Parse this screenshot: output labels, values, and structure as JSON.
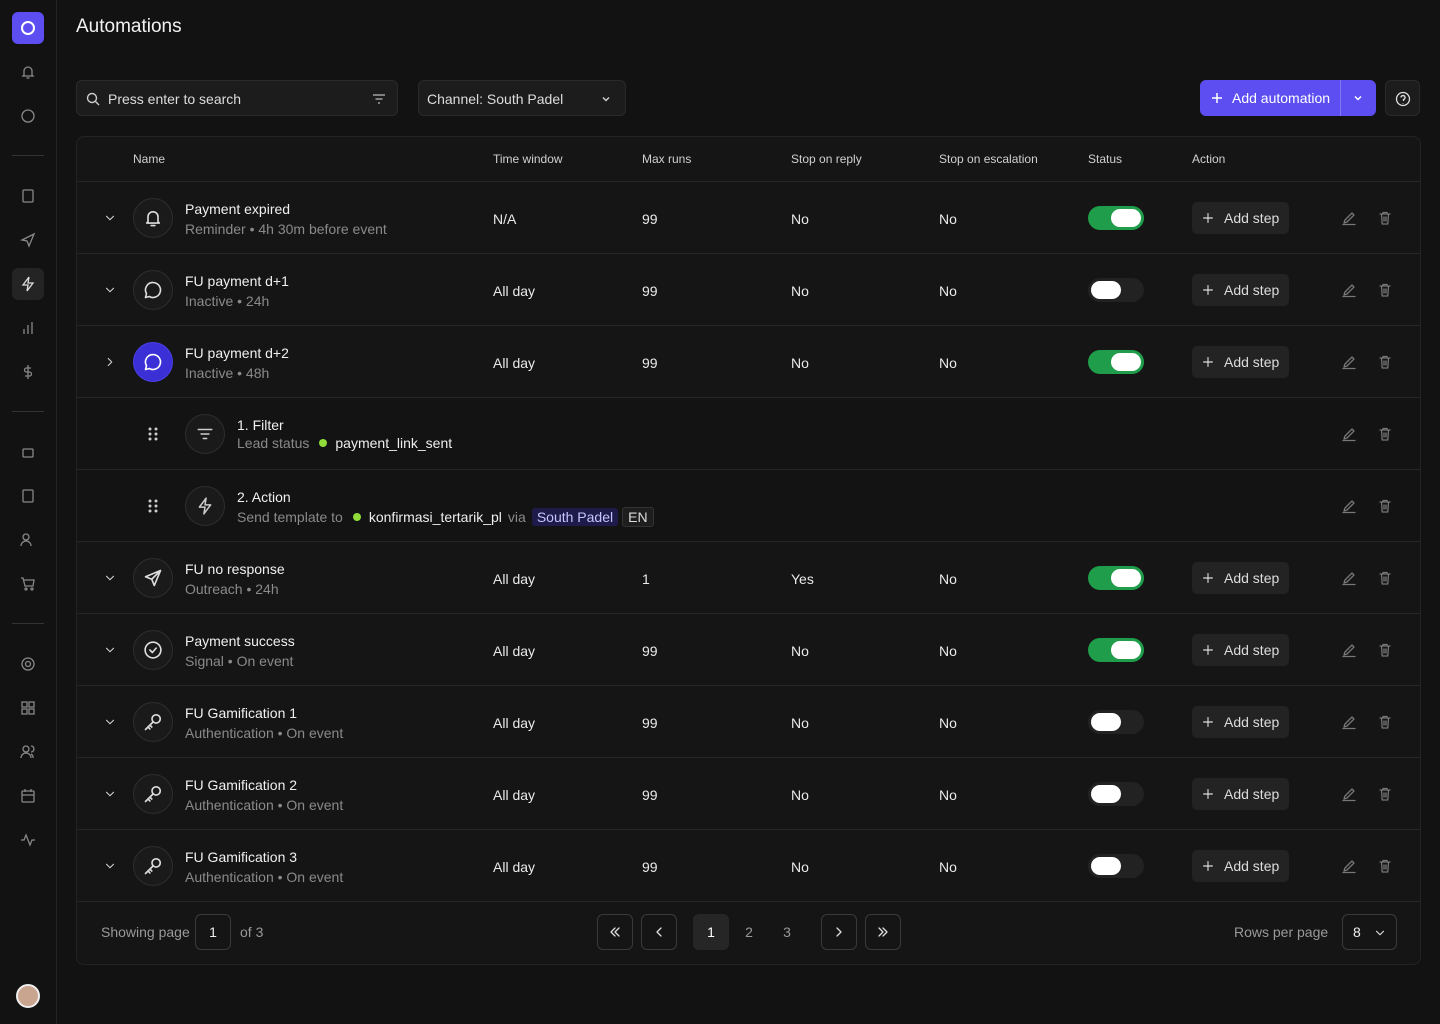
{
  "page": {
    "title": "Automations"
  },
  "toolbar": {
    "search_placeholder": "Press enter to search",
    "channel": "Channel: South Padel",
    "add_button": "Add automation"
  },
  "table": {
    "columns": [
      "Name",
      "Time window",
      "Max runs",
      "Stop on reply",
      "Stop on escalation",
      "Status",
      "Action"
    ],
    "add_step_label": "Add step",
    "rows": [
      {
        "name": "Payment expired",
        "subtitle": "Reminder • 4h 30m before event",
        "icon": "bell",
        "time_window": "N/A",
        "max_runs": 99,
        "stop_on_reply": "No",
        "stop_on_escalation": "No",
        "active": true,
        "expanded": false
      },
      {
        "name": "FU payment d+1",
        "subtitle": "Inactive • 24h",
        "icon": "chat",
        "time_window": "All day",
        "max_runs": 99,
        "stop_on_reply": "No",
        "stop_on_escalation": "No",
        "active": false,
        "expanded": false
      },
      {
        "name": "FU payment d+2",
        "subtitle": "Inactive • 48h",
        "icon": "chat",
        "time_window": "All day",
        "max_runs": 99,
        "stop_on_reply": "No",
        "stop_on_escalation": "No",
        "active": true,
        "expanded": true,
        "steps": [
          {
            "title": "1. Filter",
            "icon": "filter",
            "label": "Lead status",
            "value": "payment_link_sent"
          },
          {
            "title": "2. Action",
            "icon": "bolt",
            "label": "Send template to",
            "value": "konfirmasi_tertarik_pl",
            "via": "via",
            "channel": "South Padel",
            "lang": "EN"
          }
        ]
      },
      {
        "name": "FU no response",
        "subtitle": "Outreach • 24h",
        "icon": "send",
        "time_window": "All day",
        "max_runs": 1,
        "stop_on_reply": "Yes",
        "stop_on_escalation": "No",
        "active": true,
        "expanded": false
      },
      {
        "name": "Payment success",
        "subtitle": "Signal • On event",
        "icon": "check",
        "time_window": "All day",
        "max_runs": 99,
        "stop_on_reply": "No",
        "stop_on_escalation": "No",
        "active": true,
        "expanded": false
      },
      {
        "name": "FU Gamification 1",
        "subtitle": "Authentication • On event",
        "icon": "key",
        "time_window": "All day",
        "max_runs": 99,
        "stop_on_reply": "No",
        "stop_on_escalation": "No",
        "active": false,
        "expanded": false
      },
      {
        "name": "FU Gamification 2",
        "subtitle": "Authentication • On event",
        "icon": "key",
        "time_window": "All day",
        "max_runs": 99,
        "stop_on_reply": "No",
        "stop_on_escalation": "No",
        "active": false,
        "expanded": false
      },
      {
        "name": "FU Gamification 3",
        "subtitle": "Authentication • On event",
        "icon": "key",
        "time_window": "All day",
        "max_runs": 99,
        "stop_on_reply": "No",
        "stop_on_escalation": "No",
        "active": false,
        "expanded": false
      }
    ]
  },
  "pagination": {
    "showing_label": "Showing page",
    "current_page": 1,
    "of_label": "of 3",
    "pages": [
      1,
      2,
      3
    ],
    "rows_per_page_label": "Rows per page",
    "rows_per_page": 8
  }
}
